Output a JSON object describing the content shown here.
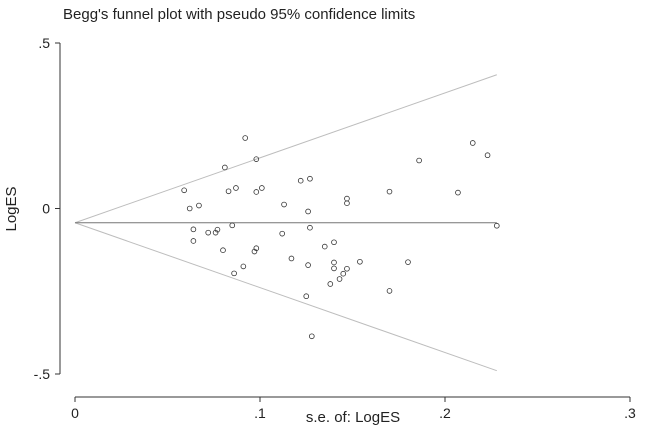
{
  "chart_data": {
    "type": "scatter",
    "title": "Begg's funnel plot with pseudo 95% confidence limits",
    "xlabel": "s.e. of: LogES",
    "ylabel": "LogES",
    "xlim": [
      0,
      0.3
    ],
    "ylim": [
      -0.5,
      0.5
    ],
    "x_ticks": [
      0,
      0.1,
      0.2,
      0.3
    ],
    "x_tick_labels": [
      "0",
      ".1",
      ".2",
      ".3"
    ],
    "y_ticks": [
      0.5,
      0,
      -0.5
    ],
    "y_tick_labels": [
      ".5",
      "0",
      "-.5"
    ],
    "grid": false,
    "pooled_estimate": -0.043,
    "lines": {
      "pooled": {
        "x": [
          0,
          0.228
        ],
        "y": [
          -0.043,
          -0.043
        ]
      },
      "upper_limit": {
        "x": [
          0,
          0.228
        ],
        "y": [
          -0.043,
          0.404
        ]
      },
      "lower_limit": {
        "x": [
          0,
          0.228
        ],
        "y": [
          -0.043,
          -0.49
        ]
      }
    },
    "points": [
      {
        "x": 0.059,
        "y": 0.055
      },
      {
        "x": 0.062,
        "y": 0.0
      },
      {
        "x": 0.064,
        "y": -0.063
      },
      {
        "x": 0.064,
        "y": -0.098
      },
      {
        "x": 0.067,
        "y": 0.009
      },
      {
        "x": 0.072,
        "y": -0.073
      },
      {
        "x": 0.076,
        "y": -0.073
      },
      {
        "x": 0.077,
        "y": -0.064
      },
      {
        "x": 0.08,
        "y": -0.126
      },
      {
        "x": 0.081,
        "y": 0.124
      },
      {
        "x": 0.083,
        "y": 0.052
      },
      {
        "x": 0.085,
        "y": -0.051
      },
      {
        "x": 0.086,
        "y": -0.196
      },
      {
        "x": 0.087,
        "y": 0.062
      },
      {
        "x": 0.091,
        "y": -0.175
      },
      {
        "x": 0.092,
        "y": 0.213
      },
      {
        "x": 0.097,
        "y": -0.13
      },
      {
        "x": 0.098,
        "y": 0.149
      },
      {
        "x": 0.098,
        "y": -0.12
      },
      {
        "x": 0.098,
        "y": 0.05
      },
      {
        "x": 0.101,
        "y": 0.062
      },
      {
        "x": 0.112,
        "y": -0.076
      },
      {
        "x": 0.113,
        "y": 0.012
      },
      {
        "x": 0.117,
        "y": -0.151
      },
      {
        "x": 0.122,
        "y": 0.084
      },
      {
        "x": 0.125,
        "y": -0.265
      },
      {
        "x": 0.126,
        "y": -0.009
      },
      {
        "x": 0.126,
        "y": -0.171
      },
      {
        "x": 0.127,
        "y": -0.058
      },
      {
        "x": 0.127,
        "y": 0.09
      },
      {
        "x": 0.128,
        "y": -0.386
      },
      {
        "x": 0.135,
        "y": -0.115
      },
      {
        "x": 0.138,
        "y": -0.228
      },
      {
        "x": 0.14,
        "y": -0.102
      },
      {
        "x": 0.14,
        "y": -0.163
      },
      {
        "x": 0.14,
        "y": -0.181
      },
      {
        "x": 0.143,
        "y": -0.213
      },
      {
        "x": 0.145,
        "y": -0.197
      },
      {
        "x": 0.147,
        "y": 0.03
      },
      {
        "x": 0.147,
        "y": 0.016
      },
      {
        "x": 0.147,
        "y": -0.182
      },
      {
        "x": 0.154,
        "y": -0.161
      },
      {
        "x": 0.17,
        "y": -0.249
      },
      {
        "x": 0.17,
        "y": 0.051
      },
      {
        "x": 0.18,
        "y": -0.162
      },
      {
        "x": 0.186,
        "y": 0.145
      },
      {
        "x": 0.207,
        "y": 0.048
      },
      {
        "x": 0.215,
        "y": 0.198
      },
      {
        "x": 0.223,
        "y": 0.161
      },
      {
        "x": 0.228,
        "y": -0.052
      }
    ]
  }
}
